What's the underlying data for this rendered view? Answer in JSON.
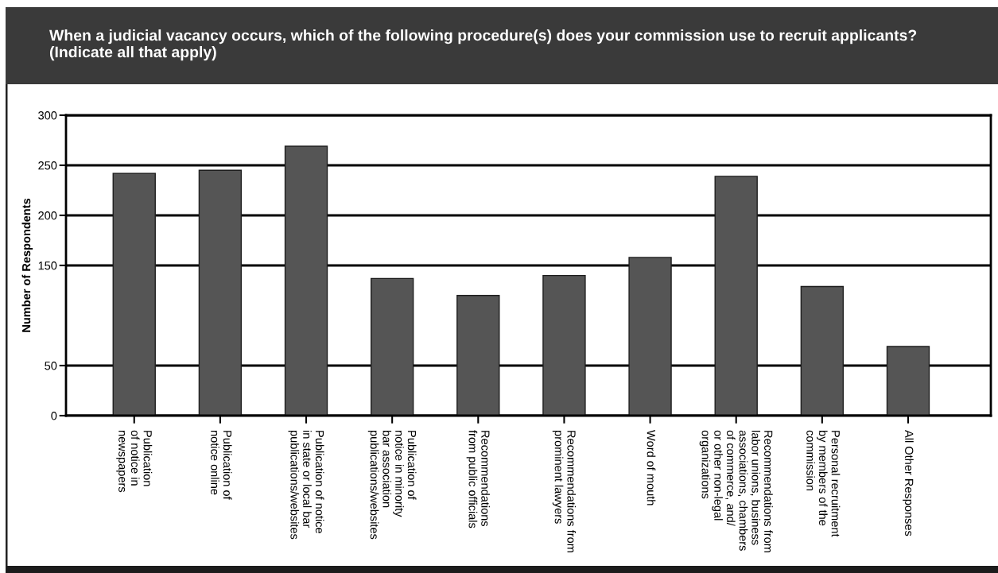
{
  "chart_data": {
    "type": "bar",
    "title": "When a judicial vacancy occurs, which of the following procedure(s) does your commission use to recruit applicants?\n(Indicate all that apply)",
    "ylabel": "Number of Respondents",
    "categories": [
      "Publication\nof notice in\nnewspapers",
      "Publication of\nnotice online",
      "Publication of notice\nin state or local bar\npublications/websites",
      "Publication of\nnotice in minority\nbar association\npublications/websites",
      "Recommendations\nfrom public officials",
      "Recommendations from\nprominent lawyers",
      "Word of mouth",
      "Recommendations from\nlabor unions, business\nassociations, chambers\nof commerce, and/\nor other non-legal\norganizations",
      "Personal recruitment\nby members of the\ncommission",
      "All Other Responses"
    ],
    "values": [
      242,
      245,
      269,
      137,
      120,
      140,
      158,
      239,
      129,
      69
    ],
    "color": "#555555",
    "ylim": [
      0,
      300
    ],
    "yticks": [
      0,
      50,
      150,
      200,
      250,
      300
    ],
    "grid": "y"
  }
}
